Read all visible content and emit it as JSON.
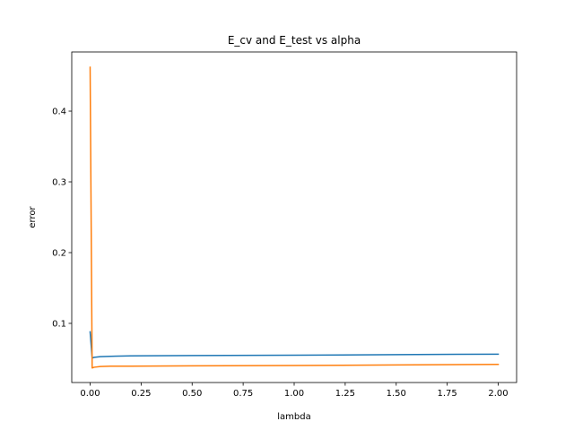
{
  "chart_data": {
    "type": "line",
    "title": "E_cv and E_test vs alpha",
    "xlabel": "lambda",
    "ylabel": "error",
    "xlim": [
      -0.09,
      2.09
    ],
    "ylim": [
      0.0164,
      0.4836
    ],
    "xticks": [
      0.0,
      0.25,
      0.5,
      0.75,
      1.0,
      1.25,
      1.5,
      1.75,
      2.0
    ],
    "xtick_labels": [
      "0.00",
      "0.25",
      "0.50",
      "0.75",
      "1.00",
      "1.25",
      "1.50",
      "1.75",
      "2.00"
    ],
    "yticks": [
      0.1,
      0.2,
      0.3,
      0.4
    ],
    "ytick_labels": [
      "0.1",
      "0.2",
      "0.3",
      "0.4"
    ],
    "grid": false,
    "legend": "none",
    "series": [
      {
        "color": "#1f77b4",
        "x": [
          0.0,
          0.01,
          0.02,
          0.05,
          0.1,
          0.2,
          0.5,
          1.0,
          1.5,
          2.0
        ],
        "y": [
          0.088,
          0.051,
          0.052,
          0.053,
          0.0535,
          0.054,
          0.0545,
          0.055,
          0.0558,
          0.0565
        ]
      },
      {
        "color": "#ff7f0e",
        "x": [
          0.0,
          0.01,
          0.02,
          0.05,
          0.1,
          0.2,
          0.5,
          1.0,
          1.5,
          2.0
        ],
        "y": [
          0.462,
          0.037,
          0.038,
          0.039,
          0.0395,
          0.0395,
          0.04,
          0.0405,
          0.0412,
          0.042
        ]
      }
    ]
  }
}
